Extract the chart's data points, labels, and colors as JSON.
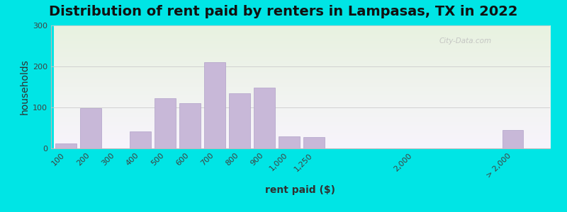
{
  "title": "Distribution of rent paid by renters in Lampasas, TX in 2022",
  "xlabel": "rent paid ($)",
  "ylabel": "households",
  "bar_color": "#c8b8d8",
  "bar_edge_color": "#b0a0c8",
  "background_color": "#00e5e5",
  "plot_bg_top": "#e8f0e0",
  "plot_bg_bottom": "#f0ecf8",
  "categories": [
    "100",
    "200",
    "300",
    "400",
    "500",
    "600",
    "700",
    "800",
    "900",
    "1,000",
    "1,250",
    "2,000",
    "> 2,000"
  ],
  "values": [
    12,
    98,
    0,
    42,
    122,
    110,
    210,
    135,
    148,
    30,
    27,
    0,
    45
  ],
  "x_positions": [
    0,
    1,
    2,
    3,
    4,
    5,
    6,
    7,
    8,
    9,
    10,
    14,
    18
  ],
  "ylim": [
    0,
    300
  ],
  "yticks": [
    0,
    100,
    200,
    300
  ],
  "figsize": [
    8.0,
    3.0
  ],
  "dpi": 100,
  "title_fontsize": 14,
  "axis_label_fontsize": 10,
  "tick_fontsize": 8,
  "watermark_text": "City-Data.com"
}
